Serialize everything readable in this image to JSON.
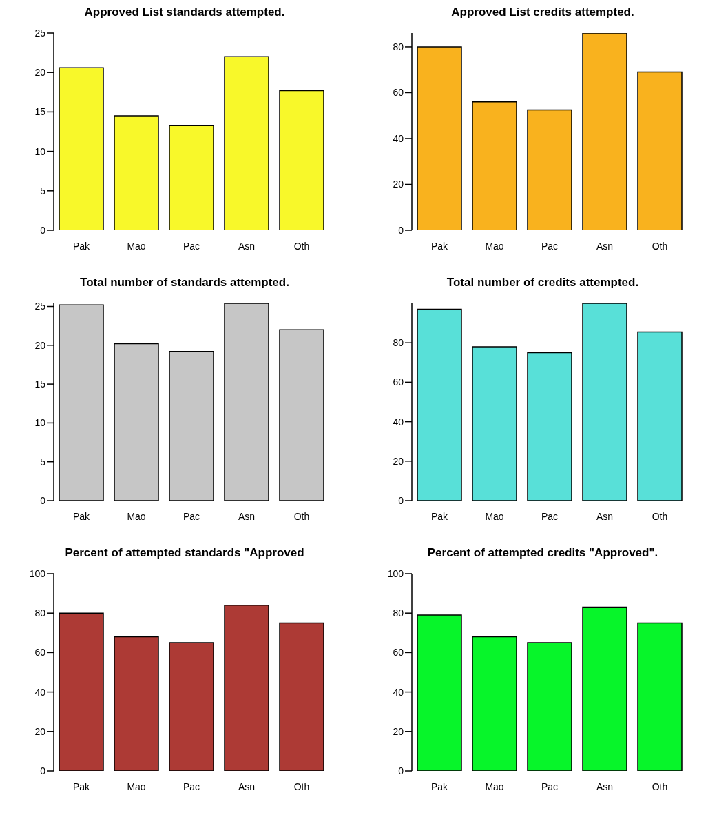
{
  "chart_data": [
    {
      "type": "bar",
      "title": "Approved List standards attempted.",
      "categories": [
        "Pak",
        "Mao",
        "Pac",
        "Asn",
        "Oth"
      ],
      "values": [
        20.6,
        14.5,
        13.3,
        22.0,
        17.7
      ],
      "color": "#f8f82a",
      "ylim": [
        0,
        25
      ],
      "yticks": [
        0,
        5,
        10,
        15,
        20,
        25
      ],
      "grid": false
    },
    {
      "type": "bar",
      "title": "Approved List credits attempted.",
      "categories": [
        "Pak",
        "Mao",
        "Pac",
        "Asn",
        "Oth"
      ],
      "values": [
        80,
        56,
        52.5,
        86,
        69
      ],
      "color": "#f9b21e",
      "ylim": [
        0,
        86
      ],
      "yticks": [
        0,
        20,
        40,
        60,
        80
      ],
      "grid": false
    },
    {
      "type": "bar",
      "title": "Total number of standards attempted.",
      "categories": [
        "Pak",
        "Mao",
        "Pac",
        "Asn",
        "Oth"
      ],
      "values": [
        25.2,
        20.2,
        19.2,
        25.4,
        22.0
      ],
      "color": "#c6c6c6",
      "ylim": [
        0,
        25.4
      ],
      "yticks": [
        0,
        5,
        10,
        15,
        20,
        25
      ],
      "grid": false
    },
    {
      "type": "bar",
      "title": "Total number of credits attempted.",
      "categories": [
        "Pak",
        "Mao",
        "Pac",
        "Asn",
        "Oth"
      ],
      "values": [
        97,
        78,
        75,
        100,
        85.5
      ],
      "color": "#58e0d8",
      "ylim": [
        0,
        100
      ],
      "yticks": [
        0,
        20,
        40,
        60,
        80
      ],
      "grid": false
    },
    {
      "type": "bar",
      "title": "Percent of attempted standards \"Approved",
      "categories": [
        "Pak",
        "Mao",
        "Pac",
        "Asn",
        "Oth"
      ],
      "values": [
        80,
        68,
        65,
        84,
        75
      ],
      "color": "#ad3a35",
      "ylim": [
        0,
        100
      ],
      "yticks": [
        0,
        20,
        40,
        60,
        80,
        100
      ],
      "grid": false
    },
    {
      "type": "bar",
      "title": "Percent of attempted credits \"Approved\".",
      "categories": [
        "Pak",
        "Mao",
        "Pac",
        "Asn",
        "Oth"
      ],
      "values": [
        79,
        68,
        65,
        83,
        75
      ],
      "color": "#07f52a",
      "ylim": [
        0,
        100
      ],
      "yticks": [
        0,
        20,
        40,
        60,
        80,
        100
      ],
      "grid": false
    }
  ]
}
